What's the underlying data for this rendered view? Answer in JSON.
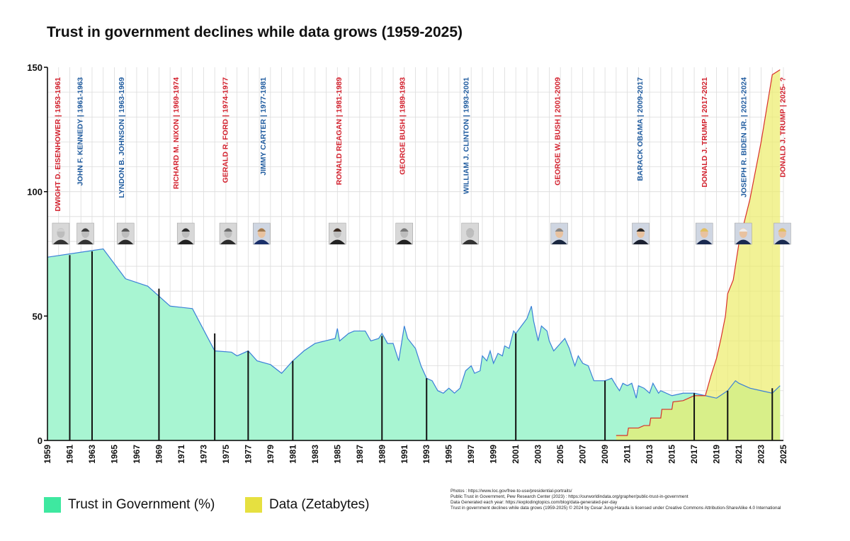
{
  "title": "Trust in government declines while data grows (1959-2025)",
  "legend": [
    {
      "label": "Trust in Government (%)",
      "color": "#3ee8a0"
    },
    {
      "label": "Data (Zetabytes)",
      "color": "#e6e040"
    }
  ],
  "credits": [
    "Photos : https://www.loc.gov/free-to-use/presidential-portraits/",
    "Public Trust in Government, Pew Research Center (2023) : https://ourworldindata.org/grapher/public-trust-in-government",
    "Data Generated each year: https://explodingtopics.com/blog/data-generated-per-day",
    "Trust in government declines while data grows (1959-2025) © 2024 by Cesar Jung-Harada is licensed under Creative Commons Attribution-ShareAlike 4.0 International"
  ],
  "colors": {
    "trust_fill": "#a8f5d2",
    "trust_line": "#3a7fd8",
    "data_fill": "#ecec6a",
    "data_line": "#d8302a",
    "republican": "#d3212e",
    "democrat": "#1f5b9f",
    "grid": "#dcdcdc"
  },
  "chart_data": {
    "type": "area",
    "xlim": [
      1959,
      2025
    ],
    "ylim": [
      0,
      150
    ],
    "x_ticks": [
      1959,
      1961,
      1963,
      1965,
      1967,
      1969,
      1971,
      1973,
      1975,
      1977,
      1979,
      1981,
      1983,
      1985,
      1987,
      1989,
      1991,
      1993,
      1995,
      1997,
      1999,
      2001,
      2003,
      2005,
      2007,
      2009,
      2011,
      2013,
      2015,
      2017,
      2019,
      2021,
      2023,
      2025
    ],
    "y_ticks": [
      0,
      50,
      100,
      150
    ],
    "grid": true,
    "series": [
      {
        "name": "Trust in Government (%)",
        "points": [
          [
            1958,
            73
          ],
          [
            1964,
            77
          ],
          [
            1966,
            65
          ],
          [
            1968,
            62
          ],
          [
            1970,
            54
          ],
          [
            1972,
            53
          ],
          [
            1974,
            36
          ],
          [
            1975.5,
            35.5
          ],
          [
            1976,
            34
          ],
          [
            1977,
            36
          ],
          [
            1977.8,
            32
          ],
          [
            1979,
            30.5
          ],
          [
            1980,
            27
          ],
          [
            1981,
            32
          ],
          [
            1982,
            36
          ],
          [
            1983,
            39
          ],
          [
            1984.8,
            41
          ],
          [
            1985,
            45
          ],
          [
            1985.2,
            40
          ],
          [
            1986,
            43
          ],
          [
            1986.5,
            44
          ],
          [
            1987.5,
            44
          ],
          [
            1988,
            40
          ],
          [
            1988.7,
            41
          ],
          [
            1989,
            43
          ],
          [
            1989.5,
            39
          ],
          [
            1990,
            39
          ],
          [
            1990.5,
            32
          ],
          [
            1991,
            46
          ],
          [
            1991.3,
            41
          ],
          [
            1992,
            37
          ],
          [
            1992.5,
            30
          ],
          [
            1993,
            25
          ],
          [
            1993.5,
            24
          ],
          [
            1994,
            20
          ],
          [
            1994.5,
            19
          ],
          [
            1995,
            21
          ],
          [
            1995.5,
            19
          ],
          [
            1996,
            21
          ],
          [
            1996.5,
            28
          ],
          [
            1997,
            30
          ],
          [
            1997.3,
            27
          ],
          [
            1997.8,
            28
          ],
          [
            1998,
            34
          ],
          [
            1998.4,
            32
          ],
          [
            1998.7,
            36
          ],
          [
            1999,
            31
          ],
          [
            1999.4,
            35
          ],
          [
            1999.8,
            34
          ],
          [
            2000,
            38
          ],
          [
            2000.4,
            37
          ],
          [
            2000.8,
            44
          ],
          [
            2001,
            43
          ],
          [
            2001.5,
            46
          ],
          [
            2002,
            49
          ],
          [
            2002.4,
            54
          ],
          [
            2002.6,
            48
          ],
          [
            2003,
            40
          ],
          [
            2003.3,
            46
          ],
          [
            2003.8,
            44
          ],
          [
            2004,
            40
          ],
          [
            2004.4,
            36
          ],
          [
            2005,
            39
          ],
          [
            2005.4,
            41
          ],
          [
            2005.8,
            37
          ],
          [
            2006,
            34
          ],
          [
            2006.3,
            30
          ],
          [
            2006.6,
            34
          ],
          [
            2007,
            31
          ],
          [
            2007.5,
            30
          ],
          [
            2008,
            24
          ],
          [
            2009,
            24
          ],
          [
            2009.6,
            25
          ],
          [
            2010,
            22
          ],
          [
            2010.3,
            20
          ],
          [
            2010.6,
            23
          ],
          [
            2011,
            22
          ],
          [
            2011.4,
            23
          ],
          [
            2011.8,
            17
          ],
          [
            2012,
            22
          ],
          [
            2012.5,
            21
          ],
          [
            2013,
            19
          ],
          [
            2013.3,
            23
          ],
          [
            2013.8,
            19
          ],
          [
            2014,
            20
          ],
          [
            2015,
            18
          ],
          [
            2016,
            19
          ],
          [
            2017,
            19
          ],
          [
            2018,
            18
          ],
          [
            2019,
            17
          ],
          [
            2020,
            20
          ],
          [
            2020.7,
            24
          ],
          [
            2021,
            23
          ],
          [
            2022,
            21
          ],
          [
            2023,
            20
          ],
          [
            2024,
            19
          ],
          [
            2024.7,
            22
          ]
        ]
      },
      {
        "name": "Data (Zetabytes)",
        "points": [
          [
            2010,
            2
          ],
          [
            2011,
            2
          ],
          [
            2011.1,
            5
          ],
          [
            2012,
            5
          ],
          [
            2012.5,
            6
          ],
          [
            2013,
            6
          ],
          [
            2013.1,
            9
          ],
          [
            2014,
            9
          ],
          [
            2014.1,
            12.5
          ],
          [
            2015,
            12.5
          ],
          [
            2015.1,
            15.5
          ],
          [
            2016,
            16
          ],
          [
            2016.5,
            17
          ],
          [
            2017,
            18
          ],
          [
            2018,
            18
          ],
          [
            2018.5,
            26
          ],
          [
            2019,
            33
          ],
          [
            2019.4,
            41
          ],
          [
            2019.8,
            50
          ],
          [
            2020,
            59
          ],
          [
            2020.5,
            64.5
          ],
          [
            2021,
            79
          ],
          [
            2022,
            97
          ],
          [
            2023,
            120
          ],
          [
            2024,
            147
          ],
          [
            2024.7,
            149
          ]
        ]
      }
    ],
    "presidents": [
      {
        "label": "DWIGHT D. EISENHOWER | 1953-1961",
        "party": "R",
        "label_year": 1959.9,
        "end_year": 1961,
        "end_trust": 74.5
      },
      {
        "label": "JOHN F. KENNEDY | 1961-1963",
        "party": "D",
        "label_year": 1961.9,
        "end_year": 1963,
        "end_trust": 76
      },
      {
        "label": "LYNDON B. JOHNSON | 1963-1969",
        "party": "D",
        "label_year": 1965.6,
        "end_year": 1969,
        "end_trust": 61
      },
      {
        "label": "RICHARD M. NIXON | 1969-1974",
        "party": "R",
        "label_year": 1970.5,
        "end_year": 1974,
        "end_trust": 43
      },
      {
        "label": "GERALD R. FORD | 1974-1977",
        "party": "R",
        "label_year": 1974.9,
        "end_year": 1977,
        "end_trust": 36
      },
      {
        "label": "JIMMY CARTER | 1977-1981",
        "party": "D",
        "label_year": 1978.3,
        "end_year": 1981,
        "end_trust": 32
      },
      {
        "label": "RONALD REAGAN | 1981-1989",
        "party": "R",
        "label_year": 1985.1,
        "end_year": 1989,
        "end_trust": 42
      },
      {
        "label": "GEORGE BUSH | 1989-1993",
        "party": "R",
        "label_year": 1990.8,
        "end_year": 1993,
        "end_trust": 25
      },
      {
        "label": "WILLIAM J. CLINTON | 1993-2001",
        "party": "D",
        "label_year": 1996.5,
        "end_year": 2001,
        "end_trust": 43
      },
      {
        "label": "GEORGE W. BUSH | 2001-2009",
        "party": "R",
        "label_year": 2004.7,
        "end_year": 2009,
        "end_trust": 24
      },
      {
        "label": "BARACK OBAMA | 2009-2017",
        "party": "D",
        "label_year": 2012.1,
        "end_year": 2017,
        "end_trust": 19
      },
      {
        "label": "DONALD J. TRUMP | 2017-2021",
        "party": "R",
        "label_year": 2017.9,
        "end_year": 2020,
        "end_trust": 20
      },
      {
        "label": "JOSEPH R. BIDEN JR. | 2021-2024",
        "party": "D",
        "label_year": 2021.4,
        "end_year": 2024,
        "end_trust": 21
      },
      {
        "label": "DONALD J. TRUMP | 2025- ?",
        "party": "R",
        "label_year": 2024.9,
        "end_year": null,
        "end_trust": null
      }
    ],
    "portraits": [
      {
        "name": "portrait-eisenhower",
        "year": 1960.2,
        "hair": "#d0d0d0",
        "suit": "#333",
        "bw": true
      },
      {
        "name": "portrait-kennedy",
        "year": 1962.4,
        "hair": "#3a3a3a",
        "suit": "#333",
        "bw": true
      },
      {
        "name": "portrait-johnson",
        "year": 1966.0,
        "hair": "#555",
        "suit": "#2b2b2b",
        "bw": true
      },
      {
        "name": "portrait-nixon",
        "year": 1971.4,
        "hair": "#2a2a2a",
        "suit": "#222",
        "bw": true
      },
      {
        "name": "portrait-ford",
        "year": 1975.2,
        "hair": "#6a6a6a",
        "suit": "#2b2b2b",
        "bw": true
      },
      {
        "name": "portrait-carter",
        "year": 1978.2,
        "hair": "#a07a50",
        "suit": "#1a2f6a",
        "bw": false
      },
      {
        "name": "portrait-reagan",
        "year": 1985.0,
        "hair": "#3a2a20",
        "suit": "#222",
        "bw": true
      },
      {
        "name": "portrait-bush",
        "year": 1991.0,
        "hair": "#777",
        "suit": "#222",
        "bw": true
      },
      {
        "name": "portrait-clinton",
        "year": 1996.9,
        "hair": "#bbb",
        "suit": "#333",
        "bw": true
      },
      {
        "name": "portrait-gwbush",
        "year": 2004.9,
        "hair": "#888",
        "suit": "#1a2740",
        "bw": false
      },
      {
        "name": "portrait-obama",
        "year": 2012.2,
        "hair": "#2a2a2a",
        "suit": "#1a2030",
        "bw": false
      },
      {
        "name": "portrait-trump-1",
        "year": 2017.9,
        "hair": "#e0c060",
        "suit": "#1a2a50",
        "bw": false
      },
      {
        "name": "portrait-biden",
        "year": 2021.4,
        "hair": "#eeeeee",
        "suit": "#1a2a50",
        "bw": false
      },
      {
        "name": "portrait-trump-2",
        "year": 2024.9,
        "hair": "#e0c060",
        "suit": "#1a2a50",
        "bw": false
      }
    ]
  }
}
